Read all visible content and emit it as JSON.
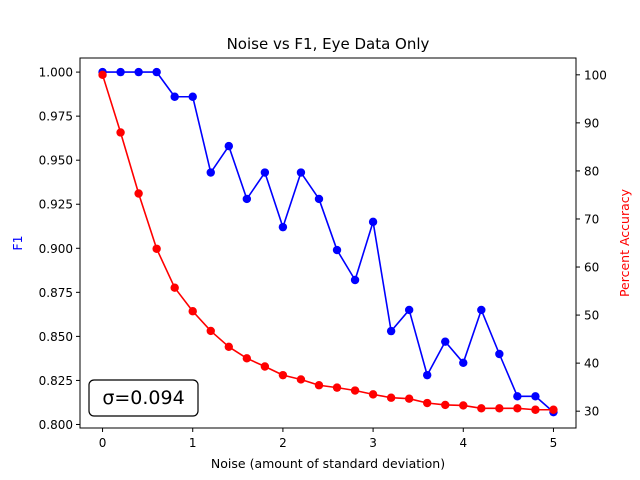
{
  "chart_data": {
    "type": "line",
    "title": "Noise vs F1, Eye Data Only",
    "xlabel": "Noise (amount of standard deviation)",
    "x": [
      0,
      0.2,
      0.4,
      0.6,
      0.8,
      1.0,
      1.2,
      1.4,
      1.6,
      1.8,
      2.0,
      2.2,
      2.4,
      2.6,
      2.8,
      3.0,
      3.2,
      3.4,
      3.6,
      3.8,
      4.0,
      4.2,
      4.4,
      4.6,
      4.8,
      5.0
    ],
    "xlim": [
      -0.25,
      5.25
    ],
    "xticks": [
      0,
      1,
      2,
      3,
      4,
      5
    ],
    "axes": {
      "left": {
        "label": "F1",
        "color": "#0000ff",
        "ylim": [
          0.798,
          1.008
        ],
        "ticks": [
          0.8,
          0.825,
          0.85,
          0.875,
          0.9,
          0.925,
          0.95,
          0.975,
          1.0
        ],
        "tick_labels": [
          "0.800",
          "0.825",
          "0.850",
          "0.875",
          "0.900",
          "0.925",
          "0.950",
          "0.975",
          "1.000"
        ]
      },
      "right": {
        "label": "Percent Accuracy",
        "color": "#ff0000",
        "ylim": [
          26.5,
          103.5
        ],
        "ticks": [
          30,
          40,
          50,
          60,
          70,
          80,
          90,
          100
        ],
        "tick_labels": [
          "30",
          "40",
          "50",
          "60",
          "70",
          "80",
          "90",
          "100"
        ]
      }
    },
    "series": [
      {
        "name": "F1",
        "axis": "left",
        "color": "#0000ff",
        "values": [
          1.0,
          1.0,
          1.0,
          1.0,
          0.986,
          0.986,
          0.943,
          0.958,
          0.928,
          0.943,
          0.912,
          0.943,
          0.928,
          0.899,
          0.882,
          0.915,
          0.853,
          0.865,
          0.828,
          0.847,
          0.835,
          0.865,
          0.84,
          0.816,
          0.816,
          0.807
        ]
      },
      {
        "name": "Percent Accuracy",
        "axis": "right",
        "color": "#ff0000",
        "values": [
          100,
          88,
          75.3,
          63.8,
          55.7,
          50.8,
          46.7,
          43.4,
          41.0,
          39.3,
          37.5,
          36.6,
          35.4,
          34.9,
          34.3,
          33.5,
          32.8,
          32.6,
          31.7,
          31.3,
          31.2,
          30.6,
          30.6,
          30.6,
          30.3,
          30.3
        ]
      }
    ],
    "annotation": "σ=0.094"
  }
}
